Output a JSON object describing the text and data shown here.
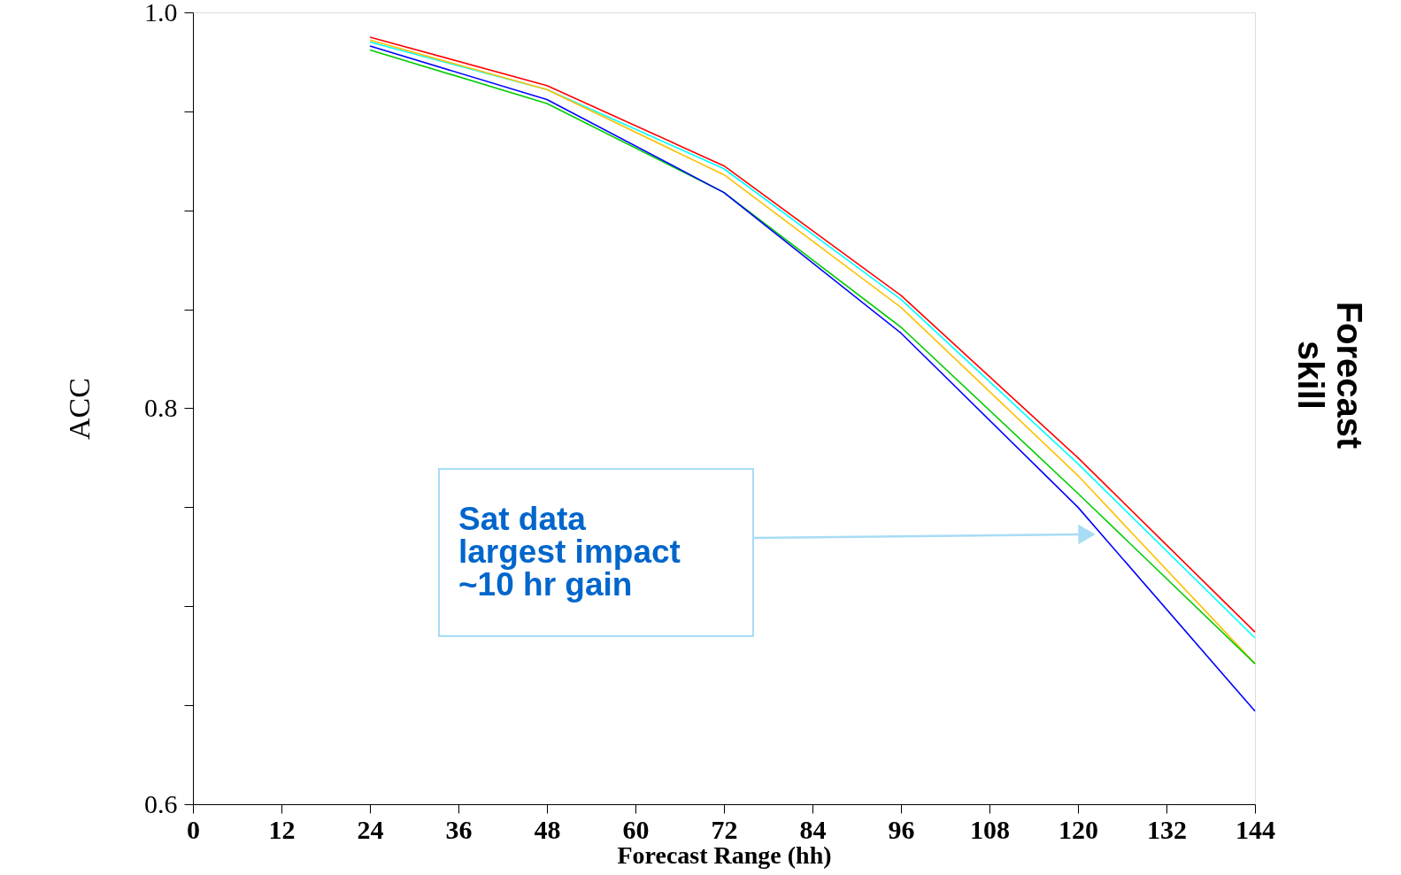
{
  "chart_data": {
    "type": "line",
    "xlabel": "Forecast Range (hh)",
    "ylabel": "ACC",
    "x": [
      24,
      48,
      72,
      96,
      120,
      144
    ],
    "series": [
      {
        "color": "#ff0000",
        "values": [
          0.9875,
          0.963,
          0.9225,
          0.857,
          0.775,
          0.687
        ]
      },
      {
        "color": "#00ffff",
        "values": [
          0.985,
          0.961,
          0.921,
          0.855,
          0.772,
          0.684
        ]
      },
      {
        "color": "#ffc000",
        "values": [
          0.986,
          0.961,
          0.918,
          0.851,
          0.766,
          0.671
        ]
      },
      {
        "color": "#00cc00",
        "values": [
          0.981,
          0.954,
          0.909,
          0.841,
          0.757,
          0.671
        ]
      },
      {
        "color": "#0000ff",
        "values": [
          0.983,
          0.956,
          0.909,
          0.838,
          0.75,
          0.647
        ]
      }
    ],
    "xlim": [
      0,
      144
    ],
    "xticks": [
      0,
      12,
      24,
      36,
      48,
      60,
      72,
      84,
      96,
      108,
      120,
      132,
      144
    ],
    "ylim": [
      0.6,
      1.0
    ],
    "yticks": [
      0.6,
      {
        "value": 0.65,
        "label": null
      },
      {
        "value": 0.7,
        "label": null
      },
      {
        "value": 0.75,
        "label": null
      },
      0.8,
      {
        "value": 0.85,
        "label": null
      },
      {
        "value": 0.9,
        "label": null
      },
      {
        "value": 0.95,
        "label": null
      },
      {
        "value": 1,
        "label": "1.0"
      }
    ],
    "annotations": [
      "Sat data\nlargest impact\n~10 hr gain",
      "Forecast skill"
    ],
    "grid": false,
    "marker": "none",
    "line_style": "solid"
  }
}
